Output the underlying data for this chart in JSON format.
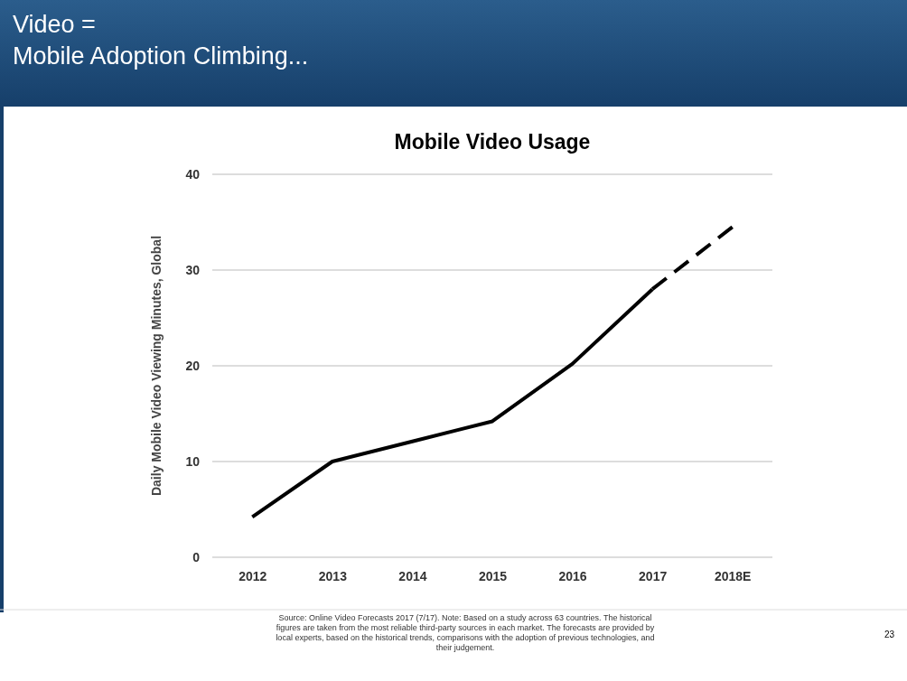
{
  "chart_data": {
    "type": "line",
    "title": "Video =\nMobile Adoption Climbing...",
    "subtitle": "Mobile Video Usage",
    "ylabel": "Daily Mobile Video Viewing Minutes, Global",
    "categories": [
      "2012",
      "2013",
      "2014",
      "2015",
      "2016",
      "2017",
      "2018E"
    ],
    "series": [
      {
        "color": "#000000",
        "line_style": "solid",
        "values": [
          4.2,
          10,
          12.1,
          14.2,
          20.2,
          28,
          null
        ]
      },
      {
        "color": "#000000",
        "line_style": "dashed",
        "values": [
          null,
          null,
          null,
          null,
          null,
          28,
          34.5
        ]
      }
    ],
    "ylim": [
      0,
      40
    ],
    "yticks": [
      0,
      10,
      20,
      30,
      40
    ],
    "grid": "y",
    "marker": "none",
    "annotations": [
      "Source: Online Video Forecasts 2017 (7/17).  Note: Based on a study across 63 countries. The historical figures are taken from the most reliable third-party sources in each market. The forecasts are provided by local experts, based on the historical trends, comparisons with the adoption of previous technologies, and their judgement.",
      "23"
    ]
  }
}
